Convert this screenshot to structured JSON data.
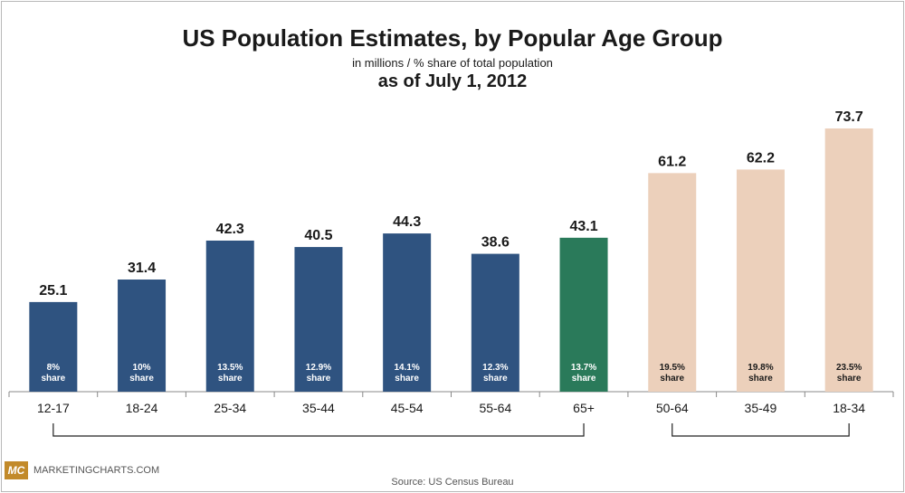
{
  "title": "US Population Estimates, by Popular Age Group",
  "subtitle": "in millions / % share of total population",
  "subtitle2": "as of July 1, 2012",
  "source": "Source: US Census Bureau",
  "logo": {
    "mark": "MC",
    "text": "MARKETINGCHARTS.COM"
  },
  "colors": {
    "blue": "#2f5380",
    "green": "#2a7a5a",
    "peach": "#ecd0bb",
    "axis": "#888888"
  },
  "chart_data": {
    "type": "bar",
    "title": "US Population Estimates, by Popular Age Group",
    "subtitle": "in millions / % share of total population",
    "xlabel": "",
    "ylabel": "",
    "ylim": [
      0,
      80
    ],
    "grid": false,
    "categories": [
      "12-17",
      "18-24",
      "25-34",
      "35-44",
      "45-54",
      "55-64",
      "65+",
      "50-64",
      "35-49",
      "18-34"
    ],
    "values": [
      25.1,
      31.4,
      42.3,
      40.5,
      44.3,
      38.6,
      43.1,
      61.2,
      62.2,
      73.7
    ],
    "value_labels": [
      "25.1",
      "31.4",
      "42.3",
      "40.5",
      "44.3",
      "38.6",
      "43.1",
      "61.2",
      "62.2",
      "73.7"
    ],
    "share_labels": [
      "8%",
      "10%",
      "13.5%",
      "12.9%",
      "14.1%",
      "12.3%",
      "13.7%",
      "19.5%",
      "19.8%",
      "23.5%"
    ],
    "share_word": "share",
    "bar_colors": [
      "#2f5380",
      "#2f5380",
      "#2f5380",
      "#2f5380",
      "#2f5380",
      "#2f5380",
      "#2a7a5a",
      "#ecd0bb",
      "#ecd0bb",
      "#ecd0bb"
    ],
    "share_text_colors": [
      "#ffffff",
      "#ffffff",
      "#ffffff",
      "#ffffff",
      "#ffffff",
      "#ffffff",
      "#ffffff",
      "#1a1a1a",
      "#1a1a1a",
      "#1a1a1a"
    ],
    "brackets": [
      {
        "from": "12-17",
        "to": "65+"
      },
      {
        "from": "50-64",
        "to": "18-34"
      }
    ]
  }
}
